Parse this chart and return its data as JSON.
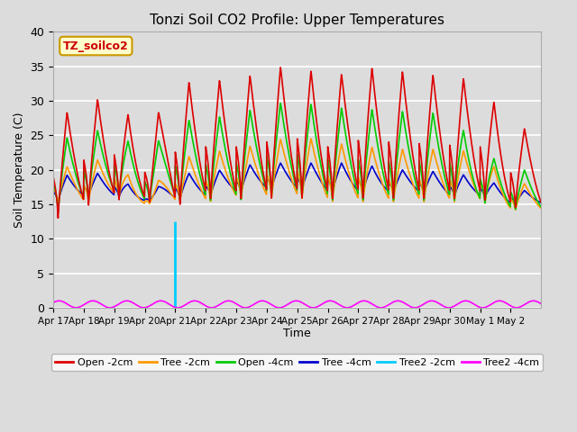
{
  "title": "Tonzi Soil CO2 Profile: Upper Temperatures",
  "xlabel": "Time",
  "ylabel": "Soil Temperature (C)",
  "ylim": [
    0,
    40
  ],
  "background_color": "#dcdcdc",
  "yticks": [
    0,
    5,
    10,
    15,
    20,
    25,
    30,
    35,
    40
  ],
  "x_tick_labels": [
    "Apr 17",
    "Apr 18",
    "Apr 19",
    "Apr 20",
    "Apr 21",
    "Apr 22",
    "Apr 23",
    "Apr 24",
    "Apr 25",
    "Apr 26",
    "Apr 27",
    "Apr 28",
    "Apr 29",
    "Apr 30",
    "May 1",
    "May 2"
  ],
  "dataset_label_box_color": "#ffffcc",
  "dataset_label_box_edge": "#cc9900",
  "dataset_label": "TZ_soilco2",
  "series": {
    "Open_2cm": {
      "color": "#dd0000",
      "lw": 1.2,
      "label": "Open -2cm"
    },
    "Tree_2cm": {
      "color": "#ff9900",
      "lw": 1.2,
      "label": "Tree -2cm"
    },
    "Open_4cm": {
      "color": "#00cc00",
      "lw": 1.2,
      "label": "Open -4cm"
    },
    "Tree_4cm": {
      "color": "#0000cc",
      "lw": 1.2,
      "label": "Tree -4cm"
    },
    "Tree2_2cm": {
      "color": "#00ccff",
      "lw": 1.5,
      "label": "Tree2 -2cm"
    },
    "Tree2_4cm": {
      "color": "#ff00ff",
      "lw": 1.2,
      "label": "Tree2 -4cm"
    }
  },
  "open2_peaks": [
    27,
    30,
    30.5,
    25,
    32.5,
    33,
    33,
    34.5,
    35.5,
    33,
    35,
    34.5,
    34,
    33.5,
    33,
    26
  ],
  "open2_nights": [
    12,
    14,
    15,
    15,
    14,
    15,
    15,
    15,
    15,
    15,
    15,
    15,
    15,
    15,
    15,
    14
  ],
  "tree2_peaks": [
    20,
    21,
    22,
    16,
    21.5,
    22.5,
    23,
    24,
    25,
    24,
    23.5,
    23,
    23,
    23,
    22.5,
    18
  ],
  "tree2_nights": [
    15,
    15,
    16,
    15,
    15,
    15,
    15.5,
    15.5,
    15.5,
    15,
    15,
    15,
    15,
    15,
    15,
    14
  ],
  "open4_peaks": [
    24,
    25.5,
    26,
    22,
    27,
    27.5,
    28,
    29.5,
    30,
    29,
    29,
    28.5,
    28.5,
    28,
    23,
    20
  ],
  "open4_nights": [
    13,
    15,
    16,
    15,
    15,
    15,
    15,
    15.5,
    15.5,
    15,
    15,
    15,
    15,
    15,
    15,
    14
  ],
  "tree4_peaks": [
    19,
    19.5,
    19.5,
    16,
    19.5,
    19.5,
    20.5,
    21,
    21,
    21,
    21,
    20,
    20,
    19.5,
    19,
    17
  ],
  "tree4_nights": [
    15,
    16,
    16,
    15.5,
    15.5,
    16,
    16.5,
    17,
    17,
    16.5,
    16.5,
    16.5,
    16.5,
    16,
    16,
    15
  ]
}
